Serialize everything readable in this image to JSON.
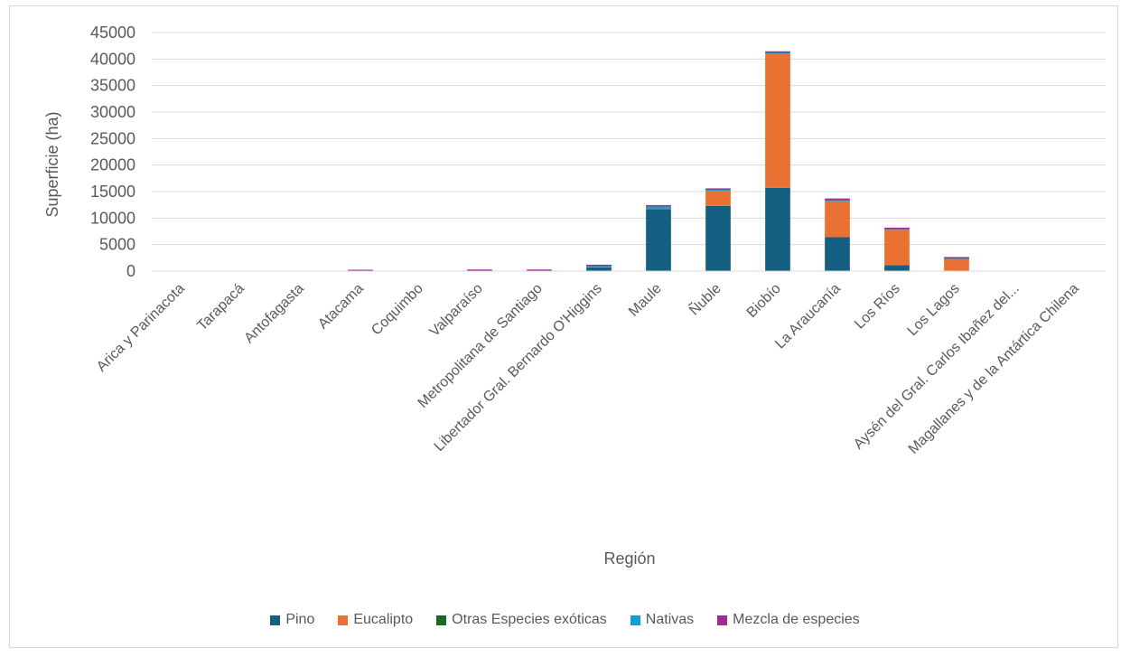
{
  "chart_data": {
    "type": "bar",
    "stacked": true,
    "title": "",
    "xlabel": "Región",
    "ylabel": "Superficie (ha)",
    "ylim": [
      0,
      45000
    ],
    "yticks": [
      "0",
      "5000",
      "10000",
      "15000",
      "20000",
      "25000",
      "30000",
      "35000",
      "40000",
      "45000"
    ],
    "grid": true,
    "legend_position": "bottom",
    "categories": [
      "Arica y Parinacota",
      "Tarapacá",
      "Antofagasta",
      "Atacama",
      "Coquimbo",
      "Valparaíso",
      "Metropolitana de Santiago",
      "Libertador Gral. Bernardo O'Higgins",
      "Maule",
      "Ñuble",
      "Biobío",
      "La Araucanía",
      "Los Ríos",
      "Los Lagos",
      "Aysén del Gral. Carlos Ibañez del...",
      "Magallanes y de la Antártica Chilena"
    ],
    "series": [
      {
        "name": "Pino",
        "color": "#156082",
        "values": [
          0,
          0,
          0,
          0,
          0,
          0,
          0,
          700,
          11700,
          12300,
          15700,
          6400,
          1100,
          0,
          0,
          0
        ]
      },
      {
        "name": "Eucalipto",
        "color": "#E97132",
        "values": [
          0,
          0,
          0,
          0,
          0,
          0,
          0,
          150,
          100,
          2900,
          25300,
          6800,
          6700,
          2300,
          0,
          0
        ]
      },
      {
        "name": "Otras Especies exóticas",
        "color": "#196B24",
        "values": [
          0,
          0,
          0,
          0,
          0,
          0,
          0,
          0,
          0,
          0,
          0,
          0,
          0,
          0,
          0,
          0
        ]
      },
      {
        "name": "Nativas",
        "color": "#0F9ED5",
        "values": [
          0,
          0,
          0,
          0,
          0,
          0,
          0,
          100,
          400,
          150,
          200,
          200,
          150,
          100,
          0,
          0
        ]
      },
      {
        "name": "Mezcla de especies",
        "color": "#A02B93",
        "values": [
          0,
          0,
          0,
          250,
          0,
          300,
          300,
          50,
          100,
          50,
          100,
          300,
          150,
          100,
          0,
          0
        ]
      }
    ]
  }
}
